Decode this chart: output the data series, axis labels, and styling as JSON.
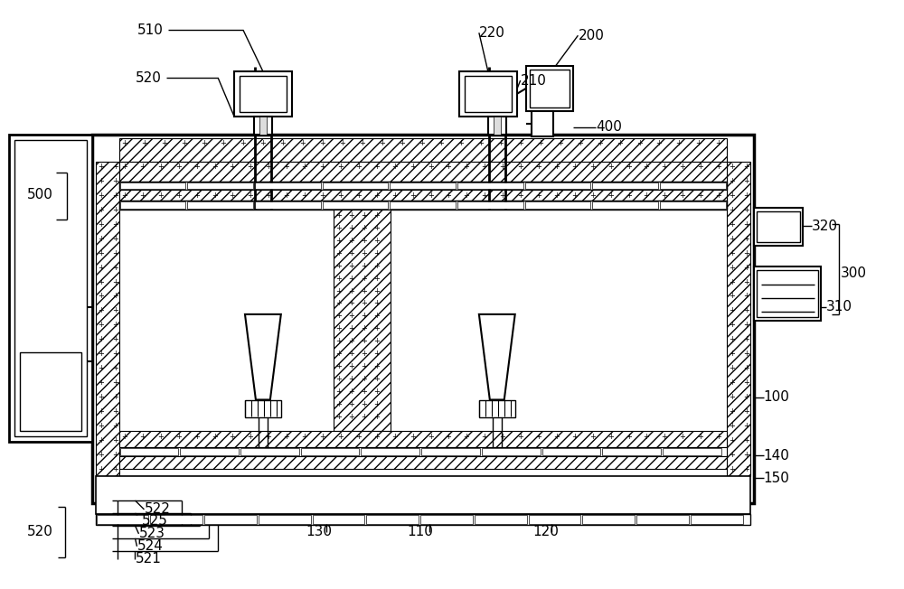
{
  "bg_color": "#ffffff",
  "line_color": "#000000",
  "fig_width": 10.0,
  "fig_height": 6.52
}
